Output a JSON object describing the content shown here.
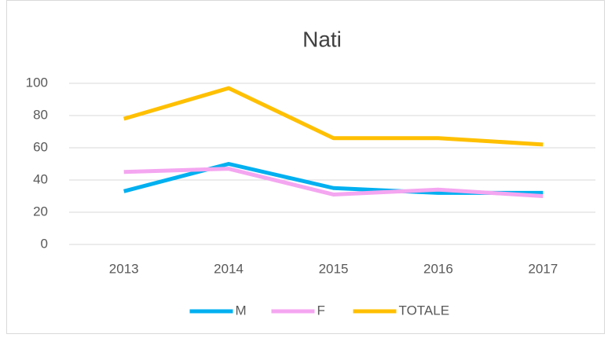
{
  "chart_data": {
    "type": "line",
    "title": "Nati",
    "categories": [
      "2013",
      "2014",
      "2015",
      "2016",
      "2017"
    ],
    "series": [
      {
        "name": "M",
        "color": "#00b0f0",
        "values": [
          33,
          50,
          35,
          32,
          32
        ]
      },
      {
        "name": "F",
        "color": "#f4a6f0",
        "values": [
          45,
          47,
          31,
          34,
          30
        ]
      },
      {
        "name": "TOTALE",
        "color": "#ffc000",
        "values": [
          78,
          97,
          66,
          66,
          62
        ]
      }
    ],
    "ylim": [
      0,
      100
    ],
    "yticks": [
      0,
      20,
      40,
      60,
      80,
      100
    ],
    "grid": true,
    "legend": "bottom"
  }
}
